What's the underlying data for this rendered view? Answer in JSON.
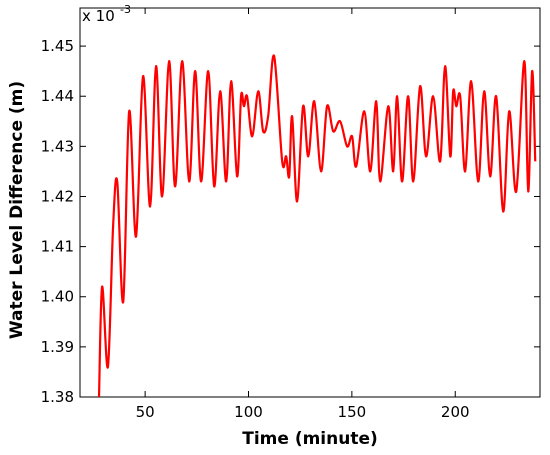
{
  "chart_data": {
    "type": "line",
    "xlabel": "Time (minute)",
    "ylabel": "Water Level Difference  (m)",
    "y_multiplier": "x 10",
    "y_exponent": "-3",
    "xlim": [
      18.5,
      241
    ],
    "ylim": [
      1.38,
      1.4576
    ],
    "xticks": [
      50,
      100,
      150,
      200
    ],
    "yticks": [
      1.38,
      1.39,
      {
        "value": 1.4,
        "label": "1.40"
      },
      1.41,
      1.42,
      1.43,
      1.44,
      1.45
    ],
    "grid": false,
    "series": [
      {
        "color": "#ff0000",
        "x": [
          27.7,
          29.2,
          32.0,
          34.5,
          36.5,
          39.4,
          42.3,
          45.6,
          49.0,
          52.4,
          55.3,
          58.2,
          61.6,
          64.5,
          67.9,
          71.3,
          74.2,
          77.1,
          80.5,
          83.4,
          86.3,
          89.2,
          91.6,
          94.5,
          96.4,
          97.8,
          99.3,
          101.8,
          104.7,
          107.1,
          109.5,
          112.4,
          116.3,
          118.2,
          119.7,
          121.1,
          123.5,
          126.4,
          128.9,
          131.8,
          135.1,
          138.0,
          141.0,
          144.3,
          147.7,
          150.1,
          152.1,
          156.0,
          158.9,
          161.8,
          163.7,
          167.6,
          170.0,
          171.9,
          174.3,
          177.2,
          179.7,
          183.0,
          185.9,
          189.3,
          192.7,
          195.1,
          197.6,
          199.0,
          200.5,
          202.4,
          204.8,
          207.7,
          211.1,
          214.0,
          216.9,
          219.8,
          223.2,
          226.1,
          229.5,
          233.4,
          235.3,
          237.2,
          238.7
        ],
        "values": [
          1.38,
          1.402,
          1.386,
          1.414,
          1.423,
          1.399,
          1.437,
          1.412,
          1.444,
          1.418,
          1.446,
          1.42,
          1.447,
          1.422,
          1.447,
          1.423,
          1.445,
          1.423,
          1.445,
          1.422,
          1.441,
          1.423,
          1.443,
          1.424,
          1.44,
          1.438,
          1.44,
          1.432,
          1.441,
          1.433,
          1.436,
          1.448,
          1.427,
          1.428,
          1.424,
          1.436,
          1.419,
          1.438,
          1.428,
          1.439,
          1.425,
          1.438,
          1.433,
          1.435,
          1.43,
          1.432,
          1.426,
          1.437,
          1.425,
          1.439,
          1.423,
          1.438,
          1.425,
          1.44,
          1.423,
          1.44,
          1.423,
          1.442,
          1.428,
          1.44,
          1.427,
          1.446,
          1.428,
          1.441,
          1.438,
          1.44,
          1.425,
          1.443,
          1.423,
          1.441,
          1.424,
          1.44,
          1.417,
          1.437,
          1.421,
          1.447,
          1.421,
          1.445,
          1.427
        ]
      }
    ]
  }
}
